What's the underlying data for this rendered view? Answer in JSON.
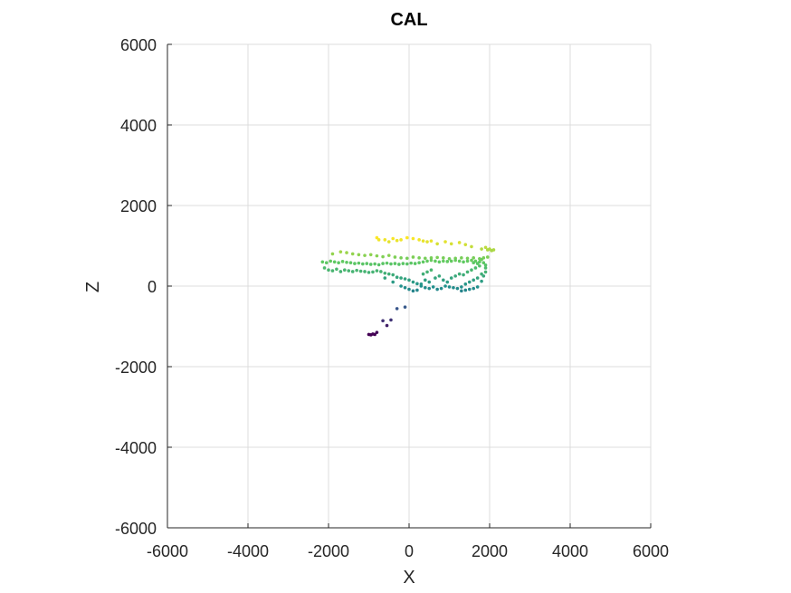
{
  "chart_data": {
    "type": "scatter",
    "title": "CAL",
    "xlabel": "X",
    "ylabel": "Z",
    "xlim": [
      -6000,
      6000
    ],
    "ylim": [
      -6000,
      6000
    ],
    "xticks": [
      -6000,
      -4000,
      -2000,
      0,
      2000,
      4000,
      6000
    ],
    "yticks": [
      -6000,
      -4000,
      -2000,
      0,
      2000,
      4000,
      6000
    ],
    "grid": true,
    "colormap": "viridis",
    "color_by": "Z",
    "color_range": [
      -1200,
      1200
    ],
    "colors": {
      "c0": "#440154",
      "c1": "#3b528b",
      "c2": "#21918c",
      "c3": "#5ec962",
      "c4": "#fde725"
    },
    "points": [
      [
        -1000,
        -1200
      ],
      [
        -950,
        -1210
      ],
      [
        -900,
        -1190
      ],
      [
        -850,
        -1200
      ],
      [
        -800,
        -1150
      ],
      [
        -650,
        -860
      ],
      [
        -550,
        -980
      ],
      [
        -450,
        -840
      ],
      [
        -300,
        -560
      ],
      [
        -100,
        -520
      ],
      [
        -800,
        1200
      ],
      [
        -750,
        1150
      ],
      [
        -600,
        1150
      ],
      [
        -500,
        1100
      ],
      [
        -400,
        1180
      ],
      [
        -300,
        1130
      ],
      [
        -200,
        1150
      ],
      [
        -50,
        1200
      ],
      [
        100,
        1180
      ],
      [
        250,
        1150
      ],
      [
        350,
        1120
      ],
      [
        450,
        1100
      ],
      [
        550,
        1120
      ],
      [
        700,
        1050
      ],
      [
        900,
        1100
      ],
      [
        1050,
        1050
      ],
      [
        1250,
        1080
      ],
      [
        1400,
        1030
      ],
      [
        1550,
        980
      ],
      [
        1800,
        920
      ],
      [
        1900,
        960
      ],
      [
        2000,
        920
      ],
      [
        2100,
        900
      ],
      [
        2050,
        880
      ],
      [
        1950,
        900
      ],
      [
        -1900,
        800
      ],
      [
        -1700,
        850
      ],
      [
        -1550,
        830
      ],
      [
        -1400,
        800
      ],
      [
        -1250,
        780
      ],
      [
        -1100,
        760
      ],
      [
        -950,
        780
      ],
      [
        -800,
        750
      ],
      [
        -650,
        730
      ],
      [
        -500,
        760
      ],
      [
        -350,
        720
      ],
      [
        -200,
        700
      ],
      [
        -50,
        690
      ],
      [
        100,
        720
      ],
      [
        250,
        700
      ],
      [
        400,
        690
      ],
      [
        550,
        700
      ],
      [
        700,
        710
      ],
      [
        850,
        700
      ],
      [
        1000,
        680
      ],
      [
        1150,
        690
      ],
      [
        1300,
        700
      ],
      [
        1450,
        690
      ],
      [
        1600,
        700
      ],
      [
        1750,
        680
      ],
      [
        1850,
        700
      ],
      [
        1950,
        720
      ],
      [
        -2150,
        600
      ],
      [
        -2050,
        580
      ],
      [
        -1950,
        620
      ],
      [
        -1850,
        600
      ],
      [
        -1750,
        580
      ],
      [
        -1650,
        610
      ],
      [
        -1550,
        590
      ],
      [
        -1450,
        580
      ],
      [
        -1350,
        560
      ],
      [
        -1250,
        570
      ],
      [
        -1150,
        550
      ],
      [
        -1050,
        560
      ],
      [
        -950,
        540
      ],
      [
        -850,
        550
      ],
      [
        -750,
        530
      ],
      [
        -650,
        560
      ],
      [
        -550,
        570
      ],
      [
        -450,
        550
      ],
      [
        -350,
        560
      ],
      [
        -250,
        540
      ],
      [
        -150,
        560
      ],
      [
        -50,
        550
      ],
      [
        50,
        570
      ],
      [
        150,
        560
      ],
      [
        250,
        580
      ],
      [
        350,
        600
      ],
      [
        450,
        620
      ],
      [
        550,
        640
      ],
      [
        650,
        620
      ],
      [
        750,
        600
      ],
      [
        850,
        620
      ],
      [
        950,
        610
      ],
      [
        1050,
        620
      ],
      [
        1150,
        640
      ],
      [
        1250,
        620
      ],
      [
        1350,
        600
      ],
      [
        1450,
        620
      ],
      [
        1550,
        640
      ],
      [
        1650,
        620
      ],
      [
        1750,
        600
      ],
      [
        1850,
        580
      ],
      [
        1800,
        660
      ],
      [
        1700,
        560
      ],
      [
        1600,
        580
      ],
      [
        -2100,
        450
      ],
      [
        -2000,
        400
      ],
      [
        -1900,
        380
      ],
      [
        -1800,
        420
      ],
      [
        -1700,
        360
      ],
      [
        -1600,
        400
      ],
      [
        -1500,
        380
      ],
      [
        -1400,
        360
      ],
      [
        -1300,
        390
      ],
      [
        -1200,
        370
      ],
      [
        -1100,
        360
      ],
      [
        -1000,
        340
      ],
      [
        -900,
        350
      ],
      [
        -800,
        380
      ],
      [
        -700,
        360
      ],
      [
        -600,
        320
      ],
      [
        -500,
        300
      ],
      [
        -400,
        280
      ],
      [
        -300,
        220
      ],
      [
        -200,
        200
      ],
      [
        -100,
        180
      ],
      [
        0,
        150
      ],
      [
        100,
        100
      ],
      [
        200,
        60
      ],
      [
        300,
        0
      ],
      [
        400,
        -40
      ],
      [
        500,
        -60
      ],
      [
        350,
        300
      ],
      [
        450,
        350
      ],
      [
        550,
        400
      ],
      [
        650,
        200
      ],
      [
        750,
        250
      ],
      [
        850,
        150
      ],
      [
        950,
        100
      ],
      [
        1050,
        200
      ],
      [
        1150,
        250
      ],
      [
        1250,
        300
      ],
      [
        1350,
        280
      ],
      [
        1450,
        350
      ],
      [
        1550,
        400
      ],
      [
        1650,
        450
      ],
      [
        1750,
        500
      ],
      [
        1800,
        300
      ],
      [
        1700,
        200
      ],
      [
        1600,
        150
      ],
      [
        1500,
        100
      ],
      [
        1400,
        50
      ],
      [
        1300,
        -20
      ],
      [
        1200,
        -60
      ],
      [
        1100,
        -40
      ],
      [
        1000,
        -20
      ],
      [
        900,
        0
      ],
      [
        800,
        -60
      ],
      [
        700,
        -80
      ],
      [
        600,
        -20
      ],
      [
        500,
        100
      ],
      [
        400,
        150
      ],
      [
        300,
        50
      ],
      [
        200,
        -100
      ],
      [
        100,
        -120
      ],
      [
        0,
        -80
      ],
      [
        -100,
        -40
      ],
      [
        -200,
        0
      ],
      [
        -400,
        100
      ],
      [
        -600,
        200
      ],
      [
        1600,
        -60
      ],
      [
        1500,
        -80
      ],
      [
        1400,
        -100
      ],
      [
        1300,
        -120
      ],
      [
        1700,
        -20
      ],
      [
        1800,
        120
      ],
      [
        1850,
        250
      ],
      [
        1900,
        350
      ],
      [
        1900,
        450
      ],
      [
        1900,
        520
      ]
    ]
  }
}
